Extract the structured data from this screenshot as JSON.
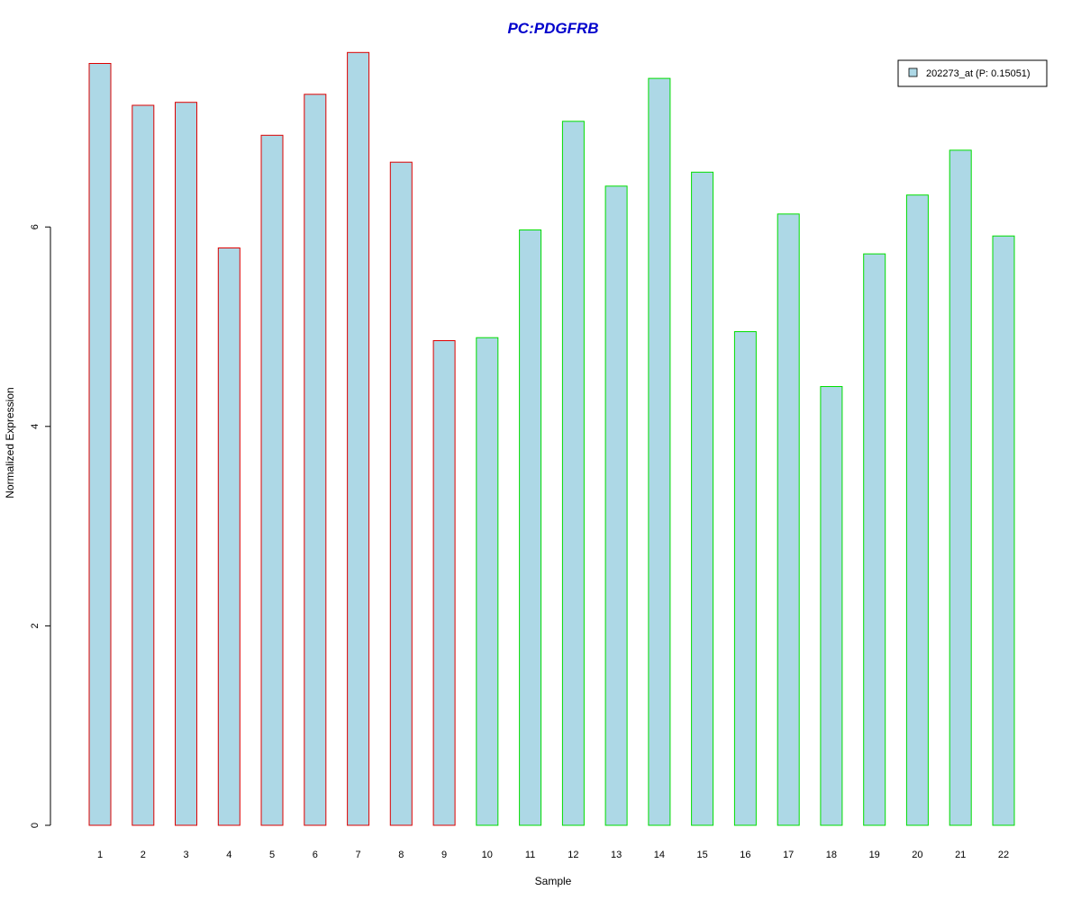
{
  "chart_data": {
    "type": "bar",
    "title": "PC:PDGFRB",
    "xlabel": "Sample",
    "ylabel": "Normalized Expression",
    "categories": [
      "1",
      "2",
      "3",
      "4",
      "5",
      "6",
      "7",
      "8",
      "9",
      "10",
      "11",
      "12",
      "13",
      "14",
      "15",
      "16",
      "17",
      "18",
      "19",
      "20",
      "21",
      "22"
    ],
    "series": [
      {
        "name": "202273_at (P: 0.15051)",
        "values": [
          7.64,
          7.22,
          7.25,
          5.79,
          6.92,
          7.33,
          7.75,
          6.65,
          4.86,
          4.89,
          5.97,
          7.06,
          6.41,
          7.49,
          6.55,
          4.95,
          6.13,
          4.4,
          5.73,
          6.32,
          6.77,
          5.91
        ]
      }
    ],
    "group_border_colors": [
      "#dd0000",
      "#dd0000",
      "#dd0000",
      "#dd0000",
      "#dd0000",
      "#dd0000",
      "#dd0000",
      "#dd0000",
      "#dd0000",
      "#00dd00",
      "#00dd00",
      "#00dd00",
      "#00dd00",
      "#00dd00",
      "#00dd00",
      "#00dd00",
      "#00dd00",
      "#00dd00",
      "#00dd00",
      "#00dd00",
      "#00dd00",
      "#00dd00"
    ],
    "bar_fill": "#add8e6",
    "title_color": "#0000cc",
    "yticks": [
      0,
      2,
      4,
      6
    ],
    "ytick_labels": [
      "0",
      "2",
      "4",
      "6"
    ],
    "ylim": [
      0,
      7.8
    ],
    "legend_position": "top-right",
    "grid": false
  }
}
